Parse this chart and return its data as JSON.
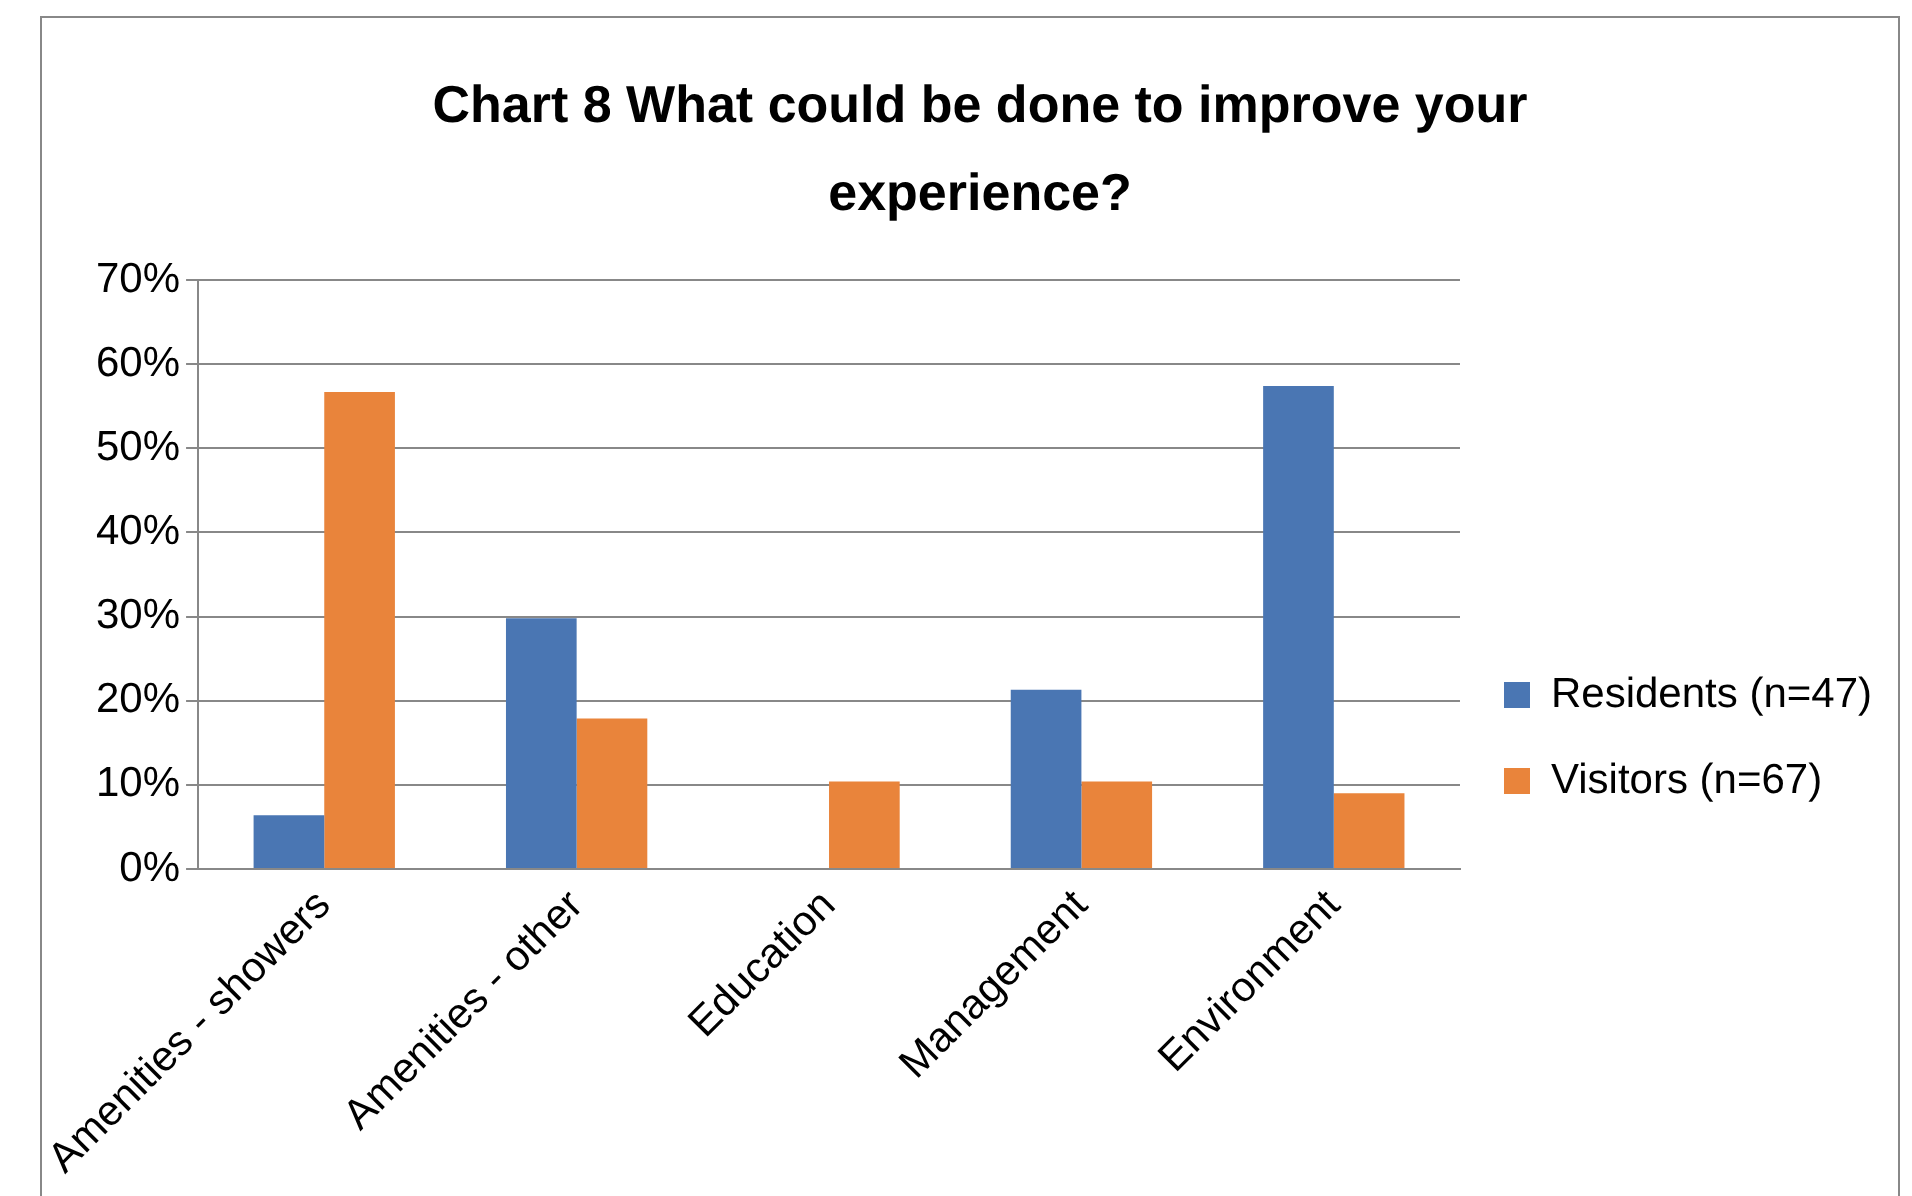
{
  "chart_data": {
    "type": "bar",
    "title": "Chart 8 What could be done to improve your experience?",
    "categories": [
      "Amenities - showers",
      "Amenities - other",
      "Education",
      "Management",
      "Environment"
    ],
    "series": [
      {
        "name": "Residents (n=47)",
        "color": "#4a76b3",
        "values": [
          6.4,
          29.8,
          0,
          21.3,
          57.4
        ]
      },
      {
        "name": "Visitors (n=67)",
        "color": "#e9843b",
        "values": [
          56.7,
          17.9,
          10.4,
          10.4,
          9.0
        ]
      }
    ],
    "ylim": [
      0,
      70
    ],
    "yticks": [
      {
        "value": 0,
        "label": "0%"
      },
      {
        "value": 10,
        "label": "10%"
      },
      {
        "value": 20,
        "label": "20%"
      },
      {
        "value": 30,
        "label": "30%"
      },
      {
        "value": 40,
        "label": "40%"
      },
      {
        "value": 50,
        "label": "50%"
      },
      {
        "value": 60,
        "label": "60%"
      },
      {
        "value": 70,
        "label": "70%"
      }
    ],
    "grid": "y",
    "legend": "right"
  }
}
